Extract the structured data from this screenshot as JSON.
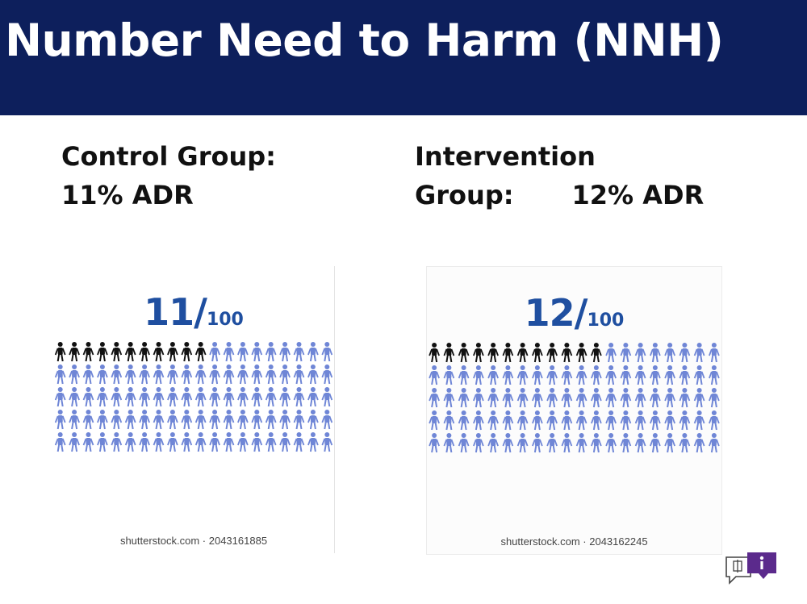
{
  "slide": {
    "title": "Number Need to Harm (NNH)"
  },
  "control": {
    "heading": "Control Group:",
    "rate": "11% ADR",
    "infographic": {
      "numerator": "11/",
      "denominator": "100",
      "harmed": 11,
      "total": 100,
      "credit": "shutterstock.com · 2043161885"
    }
  },
  "intervention": {
    "heading_line1": "Intervention",
    "heading_line2": "Group:",
    "rate": "12% ADR",
    "infographic": {
      "numerator": "12/",
      "denominator": "100",
      "harmed": 12,
      "total": 100,
      "credit": "shutterstock.com · 2043162245"
    }
  },
  "colors": {
    "title_bar": "#0d1f5c",
    "fraction_text": "#1f4fa0",
    "person_harmed": "#111111",
    "person_unaffected": "#6f86d6"
  },
  "icons": {
    "corner": "feedback-chat-icon"
  }
}
